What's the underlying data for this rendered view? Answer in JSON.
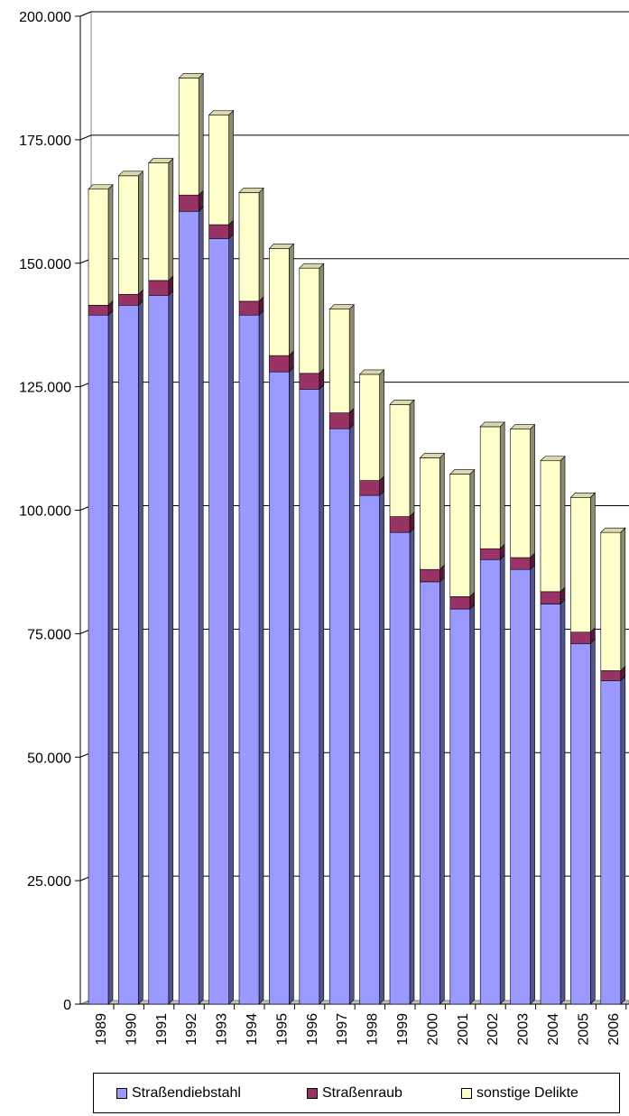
{
  "chart_data": {
    "type": "bar",
    "stacked": true,
    "categories": [
      "1989",
      "1990",
      "1991",
      "1992",
      "1993",
      "1994",
      "1995",
      "1996",
      "1997",
      "1998",
      "1999",
      "2000",
      "2001",
      "2002",
      "2003",
      "2004",
      "2005",
      "2006"
    ],
    "series": [
      {
        "name": "Straßendiebstahl",
        "color": "#9999ff",
        "values": [
          139500,
          141500,
          143500,
          160500,
          155000,
          139500,
          128000,
          124500,
          116500,
          103000,
          95500,
          85500,
          80000,
          90000,
          88000,
          81000,
          73000,
          65500
        ]
      },
      {
        "name": "Straßenraub",
        "color": "#993366",
        "values": [
          2000,
          2200,
          3000,
          3300,
          2800,
          2800,
          3300,
          3200,
          3200,
          3000,
          3200,
          2500,
          2500,
          2200,
          2400,
          2500,
          2300,
          2000
        ]
      },
      {
        "name": "sonstige Delikte",
        "color": "#ffffcc",
        "values": [
          23500,
          24000,
          23800,
          23700,
          22200,
          22000,
          21700,
          21300,
          21000,
          21500,
          22700,
          22600,
          24800,
          24700,
          26000,
          26500,
          27300,
          28000
        ]
      }
    ],
    "y_tick_labels": [
      "0",
      "25.000",
      "50.000",
      "75.000",
      "100.000",
      "125.000",
      "150.000",
      "175.000",
      "200.000"
    ],
    "ylim": [
      0,
      200000
    ],
    "grid": true,
    "legend_position": "bottom"
  },
  "legend": {
    "items": [
      {
        "label": "Straßendiebstahl",
        "color": "#9999ff"
      },
      {
        "label": "Straßenraub",
        "color": "#993366"
      },
      {
        "label": "sonstige Delikte",
        "color": "#ffffcc"
      }
    ]
  }
}
